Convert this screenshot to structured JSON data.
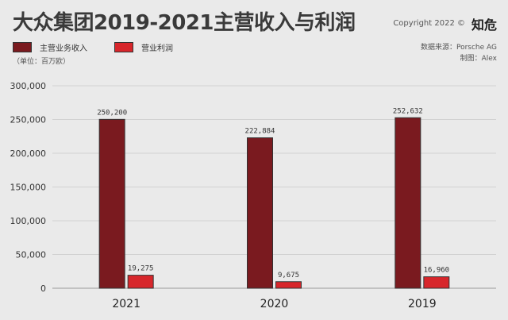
{
  "header": {
    "title": "大众集团2019-2021主营收入与利润",
    "copyright": "Copyright 2022 ©",
    "brand": "知危",
    "source": "数据来源：Porsche AG",
    "author": "制图：Alex",
    "unit": "（单位：百万欧）"
  },
  "colors": {
    "revenue": "#7a1a1f",
    "profit": "#d7262b",
    "background": "#eaeaea",
    "grid": "#d2d2d2"
  },
  "chart_data": {
    "type": "bar",
    "categories": [
      "2021",
      "2020",
      "2019"
    ],
    "series": [
      {
        "name": "主营业务收入",
        "values": [
          250200,
          222884,
          252632
        ]
      },
      {
        "name": "营业利润",
        "values": [
          19275,
          9675,
          16960
        ]
      }
    ],
    "value_labels": [
      [
        "250,200",
        "222,884",
        "252,632"
      ],
      [
        "19,275",
        "9,675",
        "16,960"
      ]
    ],
    "yticks": [
      "0",
      "50,000",
      "100,000",
      "150,000",
      "200,000",
      "250,000",
      "300,000"
    ],
    "ylim": [
      0,
      300000
    ],
    "legend_position": "top-left",
    "grid": true
  }
}
